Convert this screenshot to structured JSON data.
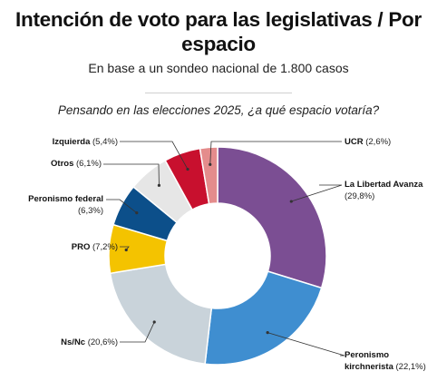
{
  "header": {
    "title_line1": "Intención de voto para las legislativas / Por",
    "title_line2": "espacio",
    "subtitle": "En base a un sondeo nacional de 1.800 casos",
    "question": "Pensando en las elecciones 2025, ¿a qué espacio votaría?"
  },
  "chart_data": {
    "type": "pie",
    "title": "Intención de voto para las legislativas / Por espacio",
    "subtitle": "En base a un sondeo nacional de 1.800 casos",
    "question": "Pensando en las elecciones 2025, ¿a qué espacio votaría?",
    "donut": true,
    "slices": [
      {
        "name": "La Libertad Avanza",
        "value": 29.8,
        "value_label": "(29,8%)",
        "color": "#7b4e93"
      },
      {
        "name": "Peronismo kirchnerista",
        "value": 22.1,
        "value_label": "(22,1%)",
        "color": "#3f8ed0"
      },
      {
        "name": "Ns/Nc",
        "value": 20.6,
        "value_label": "(20,6%)",
        "color": "#c9d3da"
      },
      {
        "name": "PRO",
        "value": 7.2,
        "value_label": "(7,2%)",
        "color": "#f4c300"
      },
      {
        "name": "Peronismo federal",
        "value": 6.3,
        "value_label": "(6,3%)",
        "color": "#0c4f8a"
      },
      {
        "name": "Otros",
        "value": 6.1,
        "value_label": "(6,1%)",
        "color": "#e6e6e6"
      },
      {
        "name": "Izquierda",
        "value": 5.4,
        "value_label": "(5,4%)",
        "color": "#c8102e"
      },
      {
        "name": "UCR",
        "value": 2.6,
        "value_label": "(2,6%)",
        "color": "#e48c8c"
      }
    ]
  }
}
